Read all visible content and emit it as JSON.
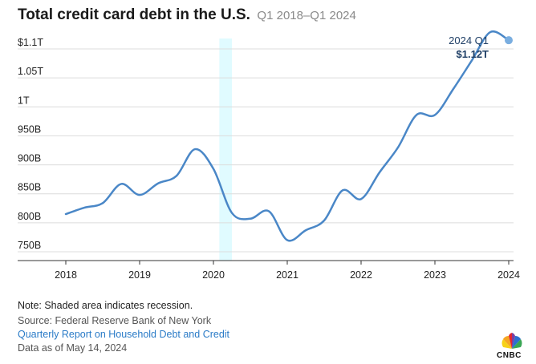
{
  "title": "Total credit card debt in the U.S.",
  "subtitle": "Q1 2018–Q1 2024",
  "note": "Note: Shaded area indicates recession.",
  "source": "Source: Federal Reserve Bank of New York",
  "source_link": "Quarterly Report on Household Debt and Credit",
  "data_as_of": "Data as of May 14, 2024",
  "logo_text": "CNBC",
  "colors": {
    "line": "#4a87c7",
    "recession": "#e0fbff",
    "grid": "#dcdcdc",
    "point": "#7aaee0"
  },
  "chart_data": {
    "type": "line",
    "x_ticks": [
      2018,
      2019,
      2020,
      2021,
      2022,
      2023,
      2024
    ],
    "y_ticks": [
      {
        "value": 750,
        "label": "750B"
      },
      {
        "value": 800,
        "label": "800B"
      },
      {
        "value": 850,
        "label": "850B"
      },
      {
        "value": 900,
        "label": "900B"
      },
      {
        "value": 950,
        "label": "950B"
      },
      {
        "value": 1000,
        "label": "1T"
      },
      {
        "value": 1050,
        "label": "1.05T"
      },
      {
        "value": 1100,
        "label": "$1.1T"
      }
    ],
    "xlim": [
      2018,
      2024
    ],
    "ylim": [
      740,
      1130
    ],
    "grid": true,
    "recession": [
      2020.08,
      2020.25
    ],
    "series": [
      {
        "x": [
          2018.0,
          2018.25,
          2018.5,
          2018.75,
          2019.0,
          2019.25,
          2019.5,
          2019.75,
          2020.0,
          2020.25,
          2020.5,
          2020.75,
          2021.0,
          2021.25,
          2021.5,
          2021.75,
          2022.0,
          2022.25,
          2022.5,
          2022.75,
          2023.0,
          2023.25,
          2023.5,
          2023.75,
          2024.0
        ],
        "y": [
          815,
          826,
          834,
          867,
          848,
          868,
          881,
          927,
          893,
          817,
          807,
          820,
          770,
          787,
          804,
          856,
          841,
          887,
          930,
          986,
          986,
          1031,
          1080,
          1129,
          1115
        ]
      }
    ],
    "annotation": {
      "x": 2024.0,
      "y": 1115,
      "label": "2024 Q1",
      "value": "$1.12T"
    }
  }
}
